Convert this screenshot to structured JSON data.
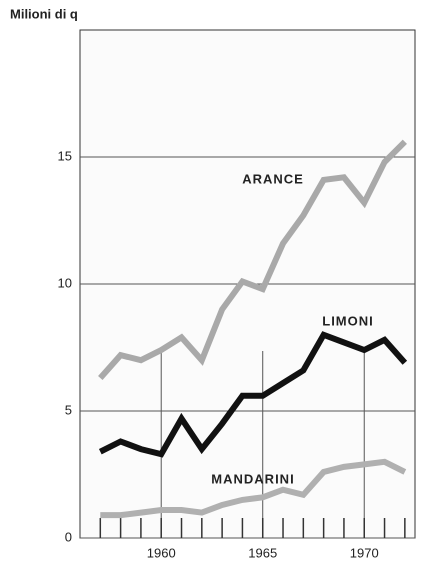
{
  "chart_data": {
    "type": "line",
    "y_label": "Milioni di q",
    "x": [
      1957,
      1958,
      1959,
      1960,
      1961,
      1962,
      1963,
      1964,
      1965,
      1966,
      1967,
      1968,
      1969,
      1970,
      1971,
      1972
    ],
    "series": [
      {
        "name": "ARANCE",
        "color": "#a9a9a9",
        "values": [
          6.3,
          7.2,
          7.0,
          7.4,
          7.9,
          7.0,
          9.0,
          10.1,
          9.8,
          11.6,
          12.7,
          14.1,
          14.2,
          13.2,
          14.8,
          15.6
        ]
      },
      {
        "name": "LIMONI",
        "color": "#111111",
        "values": [
          3.4,
          3.8,
          3.5,
          3.3,
          4.7,
          3.5,
          4.5,
          5.6,
          5.6,
          6.1,
          6.6,
          8.0,
          7.7,
          7.4,
          7.8,
          6.9
        ]
      },
      {
        "name": "MANDARINI",
        "color": "#b0b0b0",
        "values": [
          0.9,
          0.9,
          1.0,
          1.1,
          1.1,
          1.0,
          1.3,
          1.5,
          1.6,
          1.9,
          1.7,
          2.6,
          2.8,
          2.9,
          3.0,
          2.6
        ]
      }
    ],
    "xlim": [
      1956,
      1972.5
    ],
    "xticks": [
      1960,
      1965,
      1970
    ],
    "ylim": [
      0,
      20
    ],
    "yticks": [
      0,
      5,
      10,
      15
    ],
    "grid": true
  }
}
